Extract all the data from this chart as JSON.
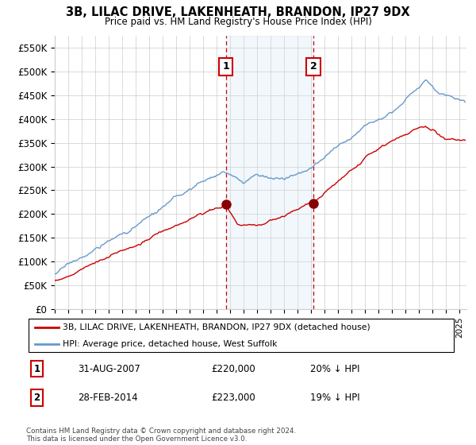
{
  "title": "3B, LILAC DRIVE, LAKENHEATH, BRANDON, IP27 9DX",
  "subtitle": "Price paid vs. HM Land Registry's House Price Index (HPI)",
  "ylabel_ticks": [
    "£0",
    "£50K",
    "£100K",
    "£150K",
    "£200K",
    "£250K",
    "£300K",
    "£350K",
    "£400K",
    "£450K",
    "£500K",
    "£550K"
  ],
  "ytick_values": [
    0,
    50000,
    100000,
    150000,
    200000,
    250000,
    300000,
    350000,
    400000,
    450000,
    500000,
    550000
  ],
  "ylim": [
    0,
    575000
  ],
  "sale1": {
    "date_num": 2007.667,
    "price": 220000,
    "label": "1",
    "date_str": "31-AUG-2007",
    "pct": "20% ↓ HPI"
  },
  "sale2": {
    "date_num": 2014.167,
    "price": 223000,
    "label": "2",
    "date_str": "28-FEB-2014",
    "pct": "19% ↓ HPI"
  },
  "legend_line1": "3B, LILAC DRIVE, LAKENHEATH, BRANDON, IP27 9DX (detached house)",
  "legend_line2": "HPI: Average price, detached house, West Suffolk",
  "footnote": "Contains HM Land Registry data © Crown copyright and database right 2024.\nThis data is licensed under the Open Government Licence v3.0.",
  "red_color": "#cc0000",
  "blue_color": "#6699cc",
  "shaded_color": "#cce0f0",
  "background_color": "#ffffff",
  "grid_color": "#cccccc"
}
